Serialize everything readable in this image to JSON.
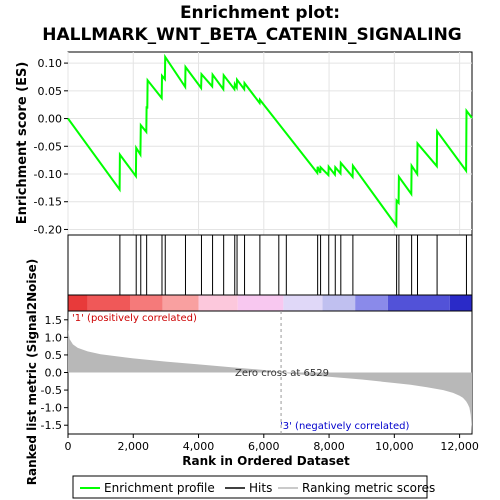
{
  "chart_data": {
    "type": "line",
    "title_line1": "Enrichment plot:",
    "title_line2": "HALLMARK_WNT_BETA_CATENIN_SIGNALING",
    "es_panel": {
      "ylabel": "Enrichment score (ES)",
      "ylim": [
        -0.21,
        0.12
      ],
      "yticks": [
        0.1,
        0.05,
        0.0,
        -0.05,
        -0.1,
        -0.15,
        -0.2
      ],
      "ytick_labels": [
        "0.10",
        "0.05",
        "0.00",
        "-0.05",
        "-0.10",
        "-0.15",
        "-0.20"
      ],
      "series": [
        {
          "name": "Enrichment profile",
          "color": "#00ff00",
          "x": [
            0,
            1580,
            1590,
            2080,
            2090,
            2220,
            2230,
            2400,
            2410,
            2430,
            2440,
            2870,
            2880,
            2970,
            2980,
            3590,
            3600,
            4080,
            4090,
            4420,
            4430,
            4760,
            4770,
            5100,
            5110,
            5170,
            5180,
            5400,
            5410,
            5870,
            5880,
            7640,
            7650,
            7730,
            7740,
            7980,
            7990,
            8180,
            8190,
            8350,
            8360,
            8720,
            8730,
            10060,
            10070,
            10130,
            10140,
            10520,
            10530,
            10700,
            10710,
            11300,
            11310,
            12200,
            12210,
            12380
          ],
          "values": [
            0.0,
            -0.128,
            -0.065,
            -0.104,
            -0.053,
            -0.065,
            -0.012,
            -0.024,
            0.022,
            0.018,
            0.069,
            0.037,
            0.077,
            0.071,
            0.111,
            0.057,
            0.093,
            0.055,
            0.08,
            0.058,
            0.079,
            0.053,
            0.078,
            0.053,
            0.062,
            0.056,
            0.07,
            0.053,
            0.064,
            0.028,
            0.034,
            -0.098,
            -0.087,
            -0.098,
            -0.088,
            -0.102,
            -0.087,
            -0.101,
            -0.088,
            -0.099,
            -0.08,
            -0.105,
            -0.085,
            -0.193,
            -0.148,
            -0.152,
            -0.105,
            -0.136,
            -0.085,
            -0.1,
            -0.045,
            -0.086,
            -0.023,
            -0.094,
            0.014,
            0.001
          ]
        }
      ]
    },
    "hits": [
      1590,
      2090,
      2230,
      2410,
      2880,
      2980,
      3600,
      4090,
      4430,
      4770,
      5110,
      5180,
      5410,
      5880,
      6460,
      6690,
      7650,
      7740,
      7990,
      8190,
      8360,
      8730,
      10070,
      10140,
      10530,
      10710,
      11310,
      12210
    ],
    "heatmap_bar": {
      "colors": [
        "#e83a3a",
        "#f05858",
        "#f57a7a",
        "#f9a0a0",
        "#fcc8dc",
        "#f8c8f0",
        "#e0d8f8",
        "#c0c0f0",
        "#8a8aea",
        "#5252d8",
        "#2a2ac8"
      ],
      "breaks": [
        0,
        600,
        1900,
        2900,
        4000,
        5200,
        6600,
        7800,
        8800,
        9800,
        11700,
        12380
      ]
    },
    "ranked_panel": {
      "ylabel": "Ranked list metric (Signal2Noise)",
      "ylim": [
        -1.75,
        1.75
      ],
      "yticks": [
        1.5,
        1.0,
        0.5,
        0.0,
        -0.5,
        -1.0,
        -1.5
      ],
      "ytick_labels": [
        "1.5",
        "1.0",
        "0.5",
        "0.0",
        "-0.5",
        "-1.0",
        "-1.5"
      ],
      "x": [
        0,
        10,
        50,
        150,
        300,
        600,
        1000,
        2000,
        3000,
        4000,
        5000,
        6000,
        6529,
        7000,
        8000,
        9000,
        10000,
        10500,
        11000,
        11500,
        11800,
        12000,
        12100,
        12200,
        12250,
        12300,
        12340,
        12370,
        12380
      ],
      "values": [
        1.8,
        1.2,
        0.95,
        0.8,
        0.7,
        0.6,
        0.52,
        0.4,
        0.31,
        0.23,
        0.15,
        0.07,
        0.0,
        -0.05,
        -0.12,
        -0.2,
        -0.3,
        -0.35,
        -0.42,
        -0.5,
        -0.58,
        -0.66,
        -0.72,
        -0.82,
        -0.9,
        -1.0,
        -1.2,
        -1.55,
        -1.75
      ],
      "fill_color": "#b8b8b8",
      "positive_label": "'1' (positively correlated)",
      "negative_label": "'3' (negatively correlated)",
      "zero_cross_label": "Zero cross at 6529",
      "zero_cross": 6529
    },
    "xaxis": {
      "label": "Rank in Ordered Dataset",
      "xlim": [
        0,
        12380
      ],
      "ticks": [
        0,
        2000,
        4000,
        6000,
        8000,
        10000,
        12000
      ],
      "tick_labels": [
        "0",
        "2,000",
        "4,000",
        "6,000",
        "8,000",
        "10,000",
        "12,000"
      ]
    },
    "legend": {
      "placement": "bottom",
      "items": [
        {
          "label": "Enrichment profile",
          "color": "#00ff00"
        },
        {
          "label": "Hits",
          "color": "#000000"
        },
        {
          "label": "Ranking metric scores",
          "color": "#b8b8b8"
        }
      ]
    }
  }
}
